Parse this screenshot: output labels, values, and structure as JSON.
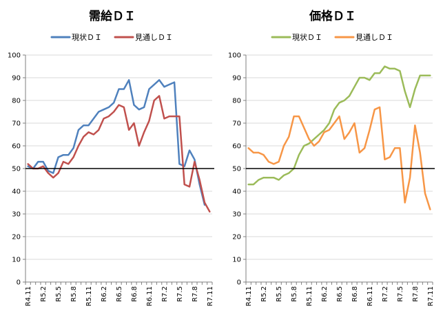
{
  "chart_data": [
    {
      "type": "line",
      "title": "需給ＤＩ",
      "x": [
        "R4.11",
        "R4.12",
        "R5.1",
        "R5.2",
        "R5.3",
        "R5.4",
        "R5.5",
        "R5.6",
        "R5.7",
        "R5.8",
        "R5.9",
        "R5.10",
        "R5.11",
        "R5.12",
        "R6.1",
        "R6.2",
        "R6.3",
        "R6.4",
        "R6.5",
        "R6.6",
        "R6.7",
        "R6.8",
        "R6.9",
        "R6.10",
        "R6.11",
        "R6.12",
        "R7.1",
        "R7.2",
        "R7.3",
        "R7.4",
        "R7.5",
        "R7.6",
        "R7.7",
        "R7.8",
        "R7.9",
        "R7.10",
        "R7.11"
      ],
      "x_tick_labels": [
        "R4.11",
        "R5.2",
        "R5.5",
        "R5.8",
        "R5.11",
        "R6.2",
        "R6.5",
        "R6.8",
        "R6.11",
        "R7.2",
        "R7.5",
        "R7.8",
        "R7.11"
      ],
      "ylim": [
        0,
        100
      ],
      "yticks": [
        0,
        10,
        20,
        30,
        40,
        50,
        60,
        70,
        80,
        90,
        100
      ],
      "reference_line": 50,
      "grid": true,
      "legend_position": "top",
      "series": [
        {
          "name": "現状ＤＩ",
          "color": "#4f81bd",
          "values": [
            51,
            50,
            53,
            53,
            49,
            48,
            55,
            56,
            56,
            59,
            67,
            69,
            69,
            72,
            75,
            76,
            77,
            79,
            85,
            85,
            89,
            78,
            76,
            77,
            85,
            87,
            89,
            86,
            87,
            88,
            52,
            51,
            58,
            54,
            43,
            34,
            null
          ]
        },
        {
          "name": "見通しＤＩ",
          "color": "#c0504d",
          "values": [
            52,
            50,
            50,
            51,
            48,
            46,
            48,
            53,
            52,
            55,
            60,
            64,
            66,
            65,
            67,
            72,
            73,
            75,
            78,
            77,
            67,
            70,
            60,
            66,
            71,
            80,
            82,
            72,
            73,
            73,
            73,
            43,
            42,
            53,
            45,
            35,
            31
          ]
        }
      ]
    },
    {
      "type": "line",
      "title": "価格ＤＩ",
      "x": [
        "R4.11",
        "R4.12",
        "R5.1",
        "R5.2",
        "R5.3",
        "R5.4",
        "R5.5",
        "R5.6",
        "R5.7",
        "R5.8",
        "R5.9",
        "R5.10",
        "R5.11",
        "R5.12",
        "R6.1",
        "R6.2",
        "R6.3",
        "R6.4",
        "R6.5",
        "R6.6",
        "R6.7",
        "R6.8",
        "R6.9",
        "R6.10",
        "R6.11",
        "R6.12",
        "R7.1",
        "R7.2",
        "R7.3",
        "R7.4",
        "R7.5",
        "R7.6",
        "R7.7",
        "R7.8",
        "R7.9",
        "R7.10",
        "R7.11"
      ],
      "x_tick_labels": [
        "R4.11",
        "R5.2",
        "R5.5",
        "R5.8",
        "R5.11",
        "R6.2",
        "R6.5",
        "R6.8",
        "R6.11",
        "R7.2",
        "R7.5",
        "R7.8",
        "R7.11"
      ],
      "ylim": [
        0,
        100
      ],
      "yticks": [
        0,
        10,
        20,
        30,
        40,
        50,
        60,
        70,
        80,
        90,
        100
      ],
      "reference_line": 50,
      "grid": true,
      "legend_position": "top",
      "series": [
        {
          "name": "現状ＤＩ",
          "color": "#9bbb59",
          "values": [
            43,
            43,
            45,
            46,
            46,
            46,
            45,
            47,
            48,
            50,
            56,
            60,
            61,
            63,
            65,
            67,
            70,
            76,
            79,
            80,
            82,
            86,
            90,
            90,
            89,
            92,
            92,
            95,
            94,
            94,
            93,
            84,
            77,
            85,
            91,
            91,
            91
          ]
        },
        {
          "name": "見通しＤＩ",
          "color": "#f79646",
          "values": [
            59,
            57,
            57,
            56,
            53,
            52,
            53,
            60,
            64,
            73,
            73,
            68,
            63,
            60,
            62,
            66,
            67,
            70,
            73,
            63,
            66,
            70,
            57,
            59,
            67,
            76,
            77,
            54,
            55,
            59,
            59,
            35,
            46,
            69,
            57,
            39,
            32
          ]
        }
      ]
    }
  ]
}
